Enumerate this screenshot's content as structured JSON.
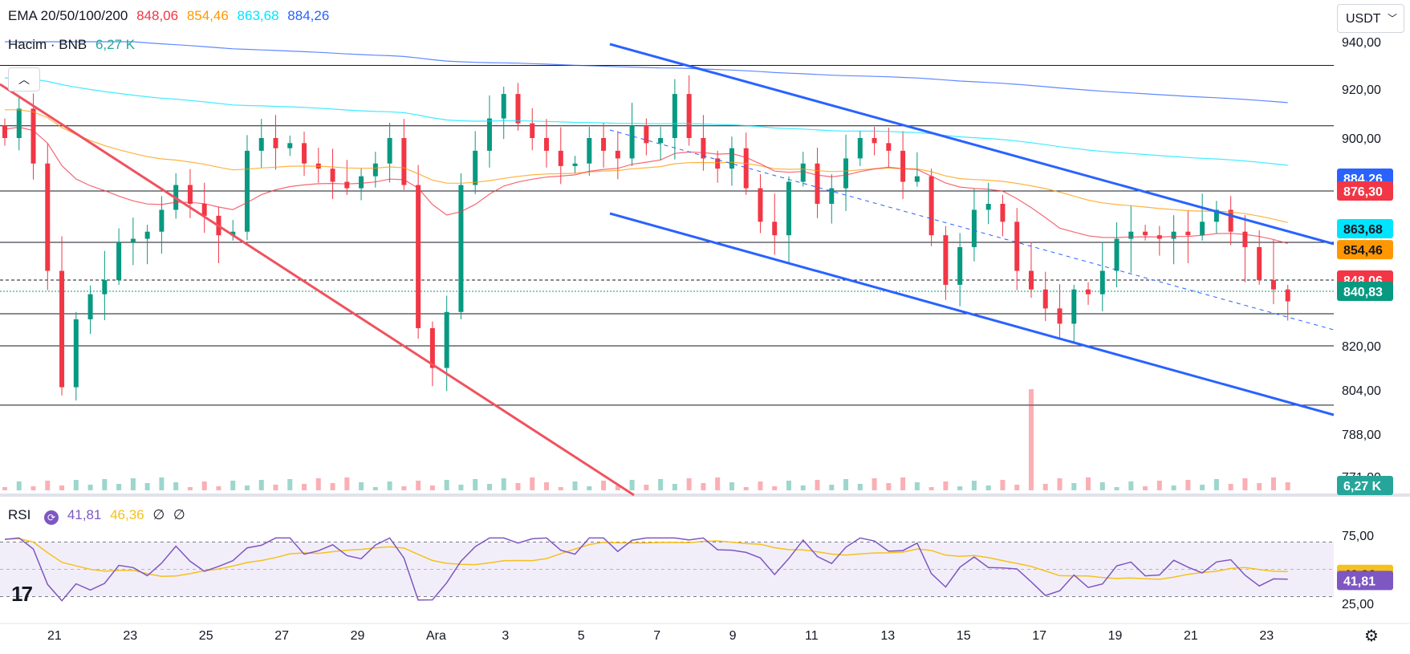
{
  "header": {
    "ema_label": "EMA 20/50/100/200",
    "ema20": "848,06",
    "ema50": "854,46",
    "ema100": "863,68",
    "ema200": "884,26",
    "volume_label": "Hacim · BNB",
    "volume_value": "6,27 K",
    "currency": "USDT",
    "rsi_label": "RSI",
    "rsi_value": "41,81",
    "rsi_ma_value": "46,36",
    "rsi_na1": "∅",
    "rsi_na2": "∅"
  },
  "colors": {
    "ema20": "#f23645",
    "ema50": "#ff9800",
    "ema100": "#00e5ff",
    "ema200": "#2962ff",
    "up": "#089981",
    "down": "#f23645",
    "channel": "#2962ff",
    "trend": "#f0525f",
    "rsi": "#7e57c2",
    "rsi_ma": "#f5c11d"
  },
  "icons": [
    "chevron-down-icon",
    "chevron-up-icon",
    "sync-icon",
    "tradingview-logo-icon",
    "settings-icon"
  ],
  "chart_data": {
    "type": "candlestick",
    "symbol": "BNB/USDT",
    "y_ticks": [
      940,
      920,
      900,
      820,
      804,
      788,
      771
    ],
    "y_tick_labels": [
      "940,00",
      "920,00",
      "900,00",
      "820,00",
      "804,00",
      "788,00",
      "771,00"
    ],
    "x_ticks": [
      "21",
      "23",
      "25",
      "27",
      "29",
      "Ara",
      "3",
      "5",
      "7",
      "9",
      "11",
      "13",
      "15",
      "17",
      "19",
      "21",
      "23"
    ],
    "price_badges": [
      {
        "label": "884,26",
        "value": 884.26,
        "color": "#2962ff"
      },
      {
        "label": "876,30",
        "value": 876.3,
        "color": "#f23645"
      },
      {
        "label": "863,68",
        "value": 863.68,
        "color": "#00e5ff"
      },
      {
        "label": "854,46",
        "value": 854.46,
        "color": "#ff9800"
      },
      {
        "label": "848,06",
        "value": 848.06,
        "color": "#f23645"
      },
      {
        "label": "840,83",
        "value": 840.83,
        "color": "#089981"
      }
    ],
    "volume_badge": "6,27 K",
    "horizontal_levels": [
      930,
      905,
      876.3,
      856,
      834.5,
      820,
      798.5
    ],
    "current_price": 840.83,
    "rsi": {
      "y_ticks": [
        75,
        25
      ],
      "y_tick_labels": [
        "75,00",
        "25,00"
      ],
      "value": 41.81,
      "ma_value": 46.36,
      "band": [
        30,
        70
      ]
    }
  }
}
